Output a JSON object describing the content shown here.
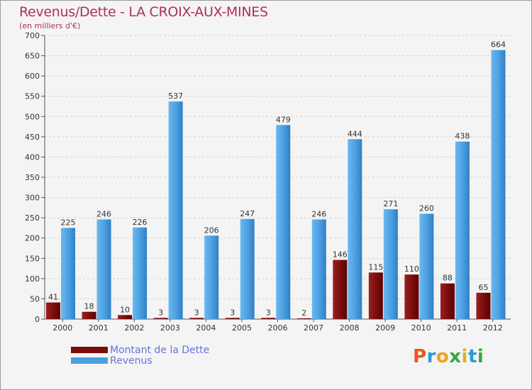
{
  "chart_data": {
    "type": "bar",
    "title": "Revenus/Dette - LA CROIX-AUX-MINES",
    "subtitle": "(en milliers d'€)",
    "categories": [
      "2000",
      "2001",
      "2002",
      "2003",
      "2004",
      "2005",
      "2006",
      "2007",
      "2008",
      "2009",
      "2010",
      "2011",
      "2012"
    ],
    "series": [
      {
        "name": "Montant de la Dette",
        "color": "#7a0c0c",
        "values": [
          41,
          18,
          10,
          3,
          3,
          3,
          3,
          2,
          146,
          115,
          110,
          88,
          65
        ]
      },
      {
        "name": "Revenus",
        "color": "#4a9fe0",
        "values": [
          225,
          246,
          226,
          537,
          206,
          247,
          479,
          246,
          444,
          271,
          260,
          438,
          664
        ]
      }
    ],
    "ylim": [
      0,
      700
    ],
    "yticks": [
      0,
      50,
      100,
      150,
      200,
      250,
      300,
      350,
      400,
      450,
      500,
      550,
      600,
      650,
      700
    ],
    "grid": true,
    "legend_position": "bottom-left"
  },
  "logo": {
    "letters": [
      "P",
      "r",
      "o",
      "x",
      "i",
      "t",
      "i"
    ],
    "colors": [
      "#e85a1a",
      "#2b9bd8",
      "#f0a020",
      "#3aa640",
      "#e0b020",
      "#2b9bd8",
      "#3aa640"
    ]
  }
}
